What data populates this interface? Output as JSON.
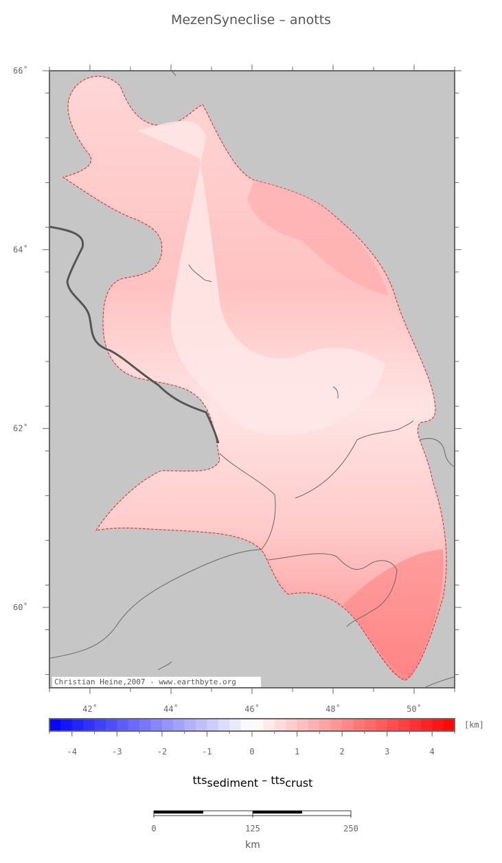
{
  "title": "MezenSyneclise – anotts",
  "credit": "Christian Heine,2007 - www.earthbyte.org",
  "map": {
    "lat_ticks": [
      {
        "value": 66,
        "label": "66˚"
      },
      {
        "value": 64,
        "label": "64˚"
      },
      {
        "value": 62,
        "label": "62˚"
      },
      {
        "value": 60,
        "label": "60˚"
      }
    ],
    "lon_ticks": [
      {
        "value": 42,
        "label": "42˚"
      },
      {
        "value": 44,
        "label": "44˚"
      },
      {
        "value": 46,
        "label": "46˚"
      },
      {
        "value": 48,
        "label": "48˚"
      },
      {
        "value": 50,
        "label": "50˚"
      }
    ],
    "colors": {
      "background": "#c6c6c6",
      "frame": "#666666",
      "outline": "#e02020",
      "rivers": "#555555"
    }
  },
  "colorbar": {
    "unit": "[km]",
    "min": -4.5,
    "max": 4.5,
    "ticks": [
      "-4",
      "-3",
      "-2",
      "-1",
      "0",
      "1",
      "2",
      "3",
      "4"
    ],
    "label_main1": "tts",
    "label_sub1": "sediment",
    "label_dash": " – ",
    "label_main2": "tts",
    "label_sub2": "crust"
  },
  "scalebar": {
    "ticks": [
      "0",
      "125",
      "250"
    ],
    "unit": "km"
  }
}
